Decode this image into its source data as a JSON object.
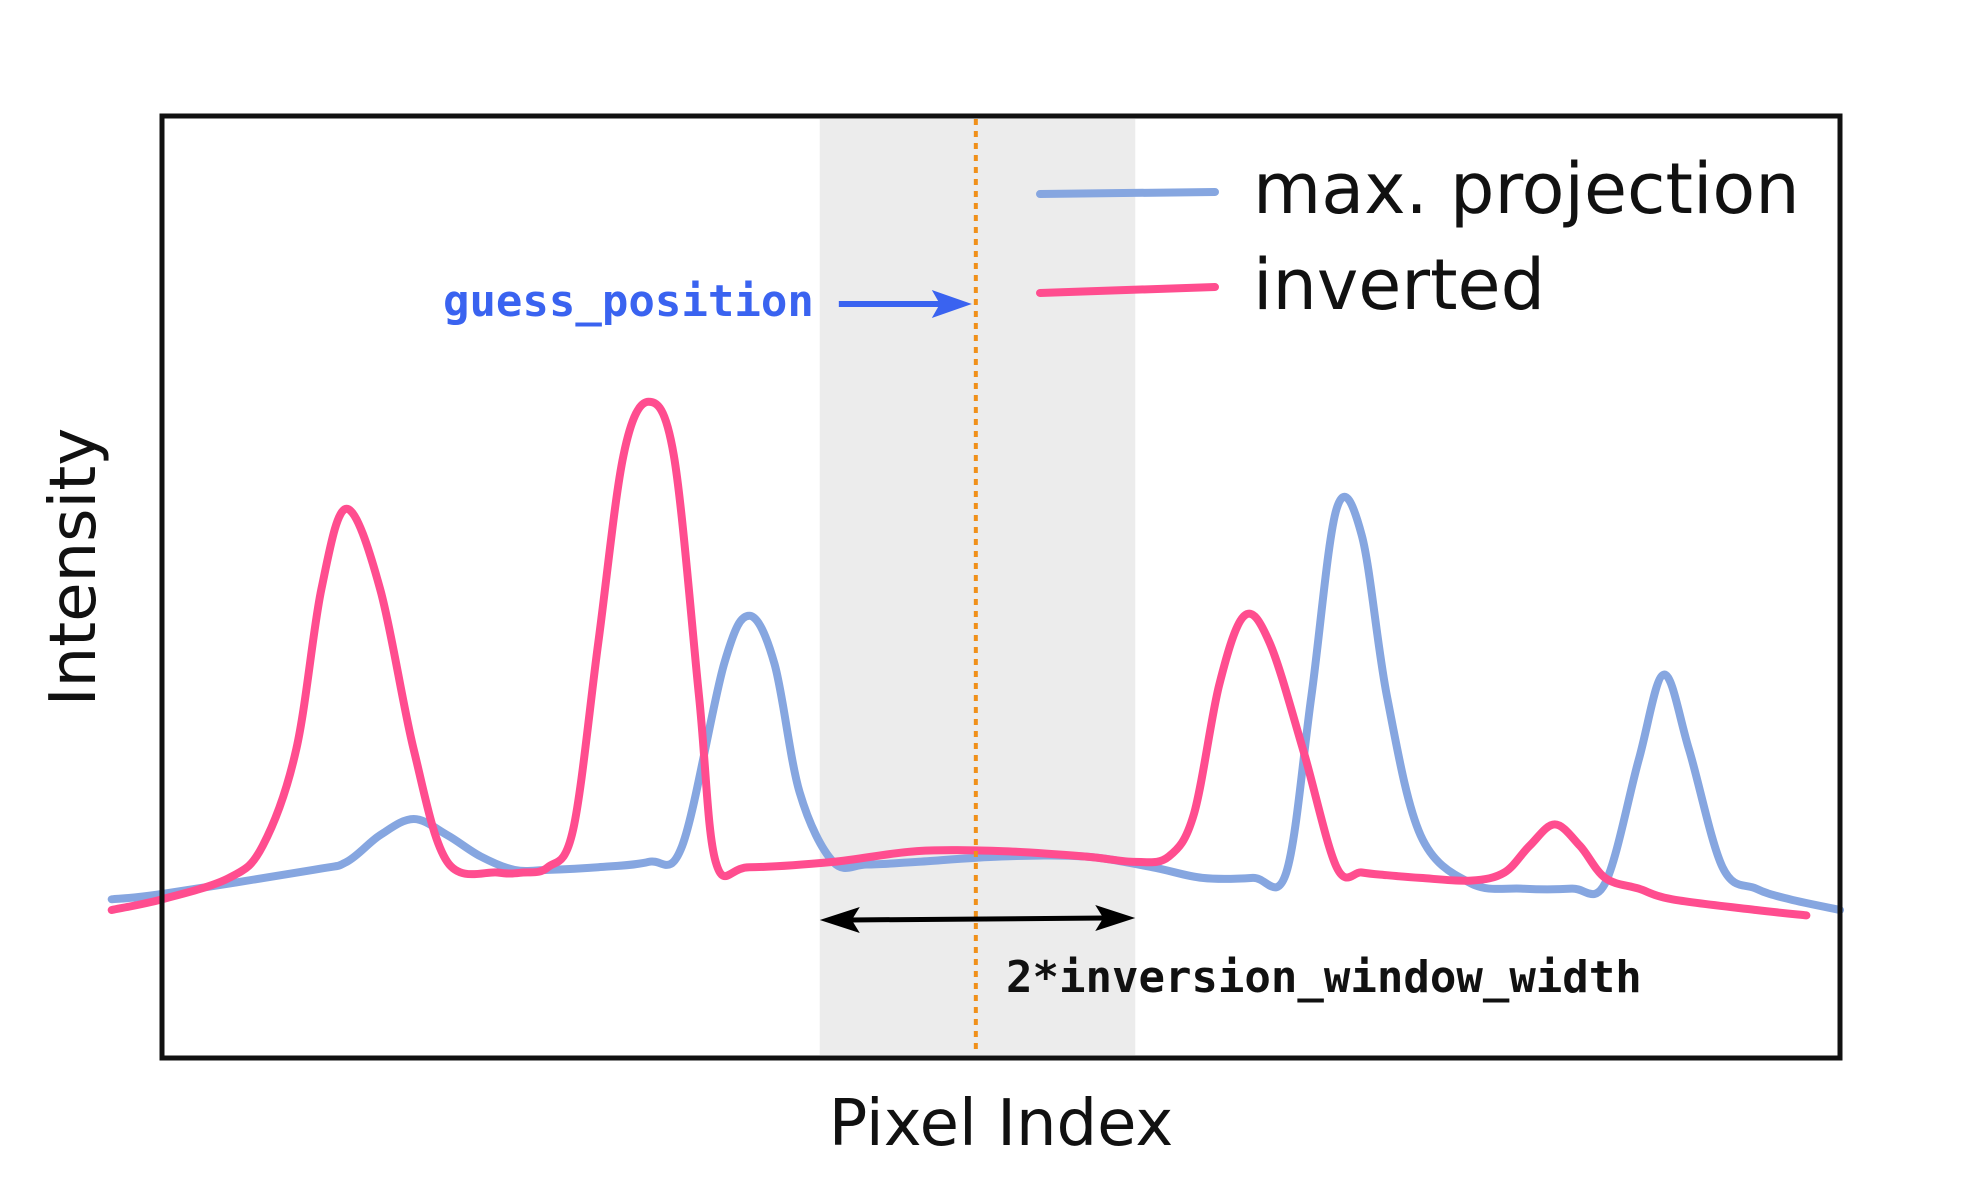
{
  "chart_data": {
    "type": "line",
    "title": "",
    "xlabel": "Pixel Index",
    "ylabel": "Intensity",
    "xlim": [
      0,
      100
    ],
    "ylim": [
      0,
      100
    ],
    "grid": false,
    "ticks_shown": false,
    "legend_position": "top-right",
    "series": [
      {
        "name": "max. projection",
        "color": "#86a6e0",
        "x": [
          -3,
          0,
          9,
          11,
          13,
          15,
          17,
          19,
          21,
          23,
          26,
          29,
          31,
          33.5,
          35,
          36.5,
          38,
          40,
          42,
          45,
          50,
          55,
          59,
          62,
          65,
          67,
          68.5,
          70,
          71.5,
          73,
          75,
          78,
          81,
          84,
          86,
          88,
          89.5,
          91,
          93,
          95,
          97,
          100
        ],
        "values": [
          2,
          3,
          7.5,
          9,
          14,
          17,
          14,
          10,
          7.5,
          7.5,
          8,
          9,
          12,
          46,
          55,
          46,
          22,
          9,
          8.5,
          9,
          10,
          10,
          8,
          6,
          6,
          7,
          40,
          75,
          70,
          40,
          14,
          5,
          4,
          4,
          5,
          28,
          44,
          30,
          8,
          4,
          2,
          0
        ]
      },
      {
        "name": "inverted",
        "color": "#ff4d8f",
        "x": [
          -3,
          0,
          4,
          6,
          8,
          9.5,
          11,
          13,
          15,
          17,
          20,
          21.5,
          23,
          24.5,
          26,
          27.5,
          29,
          30.5,
          32,
          33,
          35,
          40,
          45,
          50,
          55,
          58,
          60,
          61.5,
          63,
          64.5,
          66,
          68,
          70,
          71.5,
          73,
          75,
          78,
          80,
          81.5,
          83,
          84.5,
          86,
          88,
          90,
          95,
          98
        ],
        "values": [
          0,
          2,
          6,
          12,
          30,
          60,
          75,
          60,
          30,
          9,
          7,
          7,
          8,
          15,
          50,
          85,
          95,
          85,
          40,
          9,
          8,
          9,
          11,
          11,
          10,
          9,
          10,
          18,
          42,
          55,
          50,
          30,
          8,
          7,
          6.5,
          6,
          5.5,
          7,
          12,
          16,
          12,
          6,
          4,
          2,
          0,
          -1
        ]
      }
    ],
    "annotations": {
      "guess_position_label": "guess_position",
      "guess_position_x": 48.5,
      "window_label": "2*inversion_window_width",
      "window_range": [
        39.2,
        58
      ]
    },
    "colors": {
      "guess_label": "#3a63f0",
      "guess_line": "#f0901a",
      "window_fill": "#ececec",
      "window_arrow": "#000000"
    }
  }
}
